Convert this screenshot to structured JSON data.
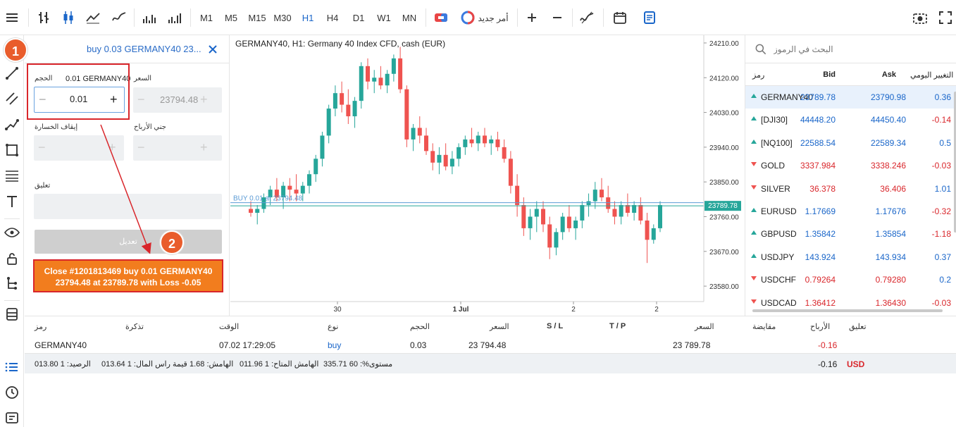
{
  "toolbar": {
    "timeframes": [
      "M1",
      "M5",
      "M15",
      "M30",
      "H1",
      "H4",
      "D1",
      "W1",
      "MN"
    ],
    "active_timeframe": "H1",
    "new_order_label": "أمر جديد"
  },
  "order": {
    "title": "buy 0.03 GERMANY40 23...",
    "volume_label": "الحجم",
    "volume_hint": "0.01 GERMANY40",
    "volume_value": "0.01",
    "price_label": "السعر",
    "price_value": "23794.48",
    "stop_loss_label": "إيقاف الخسارة",
    "take_profit_label": "جني الأرباح",
    "comment_label": "تعليق",
    "modify_label": "تعديل",
    "close_line1": "Close #1201813469 buy 0.01 GERMANY40",
    "close_line2": "23794.48 at 23789.78 with Loss -0.05",
    "badge1": "1",
    "badge2": "2"
  },
  "chart": {
    "title": "GERMANY40, H1: Germany 40 Index CFD, cash (EUR)",
    "buy_line_label": "BUY 0.01 at 23794.48",
    "current_price_label": "23789.78",
    "price_ticks": [
      "24210.00",
      "24120.00",
      "24030.00",
      "23940.00",
      "23850.00",
      "23760.00",
      "23670.00",
      "23580.00"
    ],
    "time_ticks": [
      "30",
      "1 Jul",
      "2",
      "2"
    ],
    "colors": {
      "up": "#26a69a",
      "down": "#ef5350",
      "buy_line": "#5b9bd5",
      "current_line": "#26a69a"
    }
  },
  "chart_data": {
    "type": "candlestick",
    "title": "GERMANY40, H1: Germany 40 Index CFD, cash (EUR)",
    "ylim": [
      23540,
      24230
    ],
    "x_tick_labels": [
      "30",
      "1 Jul",
      "2",
      "2"
    ],
    "reference_lines": [
      {
        "label": "BUY 0.01 at 23794.48",
        "value": 23794.48
      },
      {
        "label": "23789.78",
        "value": 23789.78
      }
    ],
    "ohlc": [
      [
        23780,
        23800,
        23760,
        23770
      ],
      [
        23770,
        23790,
        23740,
        23780
      ],
      [
        23780,
        23820,
        23770,
        23810
      ],
      [
        23810,
        23840,
        23790,
        23830
      ],
      [
        23830,
        23860,
        23800,
        23810
      ],
      [
        23810,
        23850,
        23780,
        23840
      ],
      [
        23840,
        23860,
        23800,
        23830
      ],
      [
        23830,
        23870,
        23800,
        23820
      ],
      [
        23820,
        23850,
        23800,
        23840
      ],
      [
        23840,
        23880,
        23820,
        23870
      ],
      [
        23870,
        23920,
        23850,
        23910
      ],
      [
        23910,
        23980,
        23890,
        23970
      ],
      [
        23970,
        24050,
        23950,
        24040
      ],
      [
        24040,
        24100,
        24020,
        24080
      ],
      [
        24080,
        24110,
        24030,
        24050
      ],
      [
        24050,
        24090,
        24000,
        24020
      ],
      [
        24020,
        24070,
        23990,
        24060
      ],
      [
        24060,
        24160,
        24040,
        24150
      ],
      [
        24150,
        24170,
        24090,
        24110
      ],
      [
        24110,
        24140,
        24080,
        24120
      ],
      [
        24120,
        24150,
        24090,
        24100
      ],
      [
        24100,
        24140,
        24080,
        24130
      ],
      [
        24130,
        24180,
        24110,
        24170
      ],
      [
        24170,
        24200,
        24080,
        24090
      ],
      [
        24090,
        24100,
        23940,
        23960
      ],
      [
        23960,
        24000,
        23930,
        23990
      ],
      [
        23990,
        24020,
        23950,
        23970
      ],
      [
        23970,
        23990,
        23920,
        23930
      ],
      [
        23930,
        23950,
        23880,
        23900
      ],
      [
        23900,
        23940,
        23870,
        23920
      ],
      [
        23920,
        23950,
        23880,
        23890
      ],
      [
        23890,
        23930,
        23870,
        23910
      ],
      [
        23910,
        23950,
        23890,
        23940
      ],
      [
        23940,
        23970,
        23920,
        23960
      ],
      [
        23960,
        23990,
        23940,
        23950
      ],
      [
        23950,
        23980,
        23930,
        23970
      ],
      [
        23970,
        23990,
        23940,
        23950
      ],
      [
        23950,
        23970,
        23920,
        23960
      ],
      [
        23960,
        23980,
        23930,
        23940
      ],
      [
        23940,
        23960,
        23900,
        23910
      ],
      [
        23910,
        23930,
        23820,
        23840
      ],
      [
        23840,
        23870,
        23760,
        23790
      ],
      [
        23790,
        23810,
        23710,
        23730
      ],
      [
        23730,
        23780,
        23700,
        23760
      ],
      [
        23760,
        23800,
        23720,
        23780
      ],
      [
        23780,
        23800,
        23720,
        23740
      ],
      [
        23740,
        23760,
        23650,
        23680
      ],
      [
        23680,
        23730,
        23660,
        23720
      ],
      [
        23720,
        23770,
        23700,
        23760
      ],
      [
        23760,
        23790,
        23720,
        23730
      ],
      [
        23730,
        23760,
        23700,
        23750
      ],
      [
        23750,
        23800,
        23730,
        23790
      ],
      [
        23790,
        23820,
        23760,
        23800
      ],
      [
        23800,
        23850,
        23780,
        23830
      ],
      [
        23830,
        23860,
        23800,
        23810
      ],
      [
        23810,
        23840,
        23770,
        23780
      ],
      [
        23780,
        23800,
        23740,
        23760
      ],
      [
        23760,
        23800,
        23740,
        23790
      ],
      [
        23790,
        23820,
        23760,
        23770
      ],
      [
        23770,
        23800,
        23750,
        23790
      ],
      [
        23790,
        23810,
        23740,
        23750
      ],
      [
        23750,
        23770,
        23640,
        23700
      ],
      [
        23700,
        23740,
        23690,
        23730
      ],
      [
        23730,
        23800,
        23720,
        23790
      ]
    ]
  },
  "watchlist": {
    "search_placeholder": "البحث في الرموز",
    "headers": {
      "symbol": "رمز",
      "bid": "Bid",
      "ask": "Ask",
      "change": "التغيير اليومي"
    },
    "rows": [
      {
        "symbol": "GERMANY40",
        "dir": "up",
        "bid": "23789.78",
        "ask": "23790.98",
        "change": "0.36"
      },
      {
        "symbol": "[DJI30]",
        "dir": "up",
        "bid": "44448.20",
        "ask": "44450.40",
        "change": "-0.14"
      },
      {
        "symbol": "[NQ100]",
        "dir": "up",
        "bid": "22588.54",
        "ask": "22589.34",
        "change": "0.5"
      },
      {
        "symbol": "GOLD",
        "dir": "down",
        "bid": "3337.984",
        "ask": "3338.246",
        "change": "-0.03"
      },
      {
        "symbol": "SILVER",
        "dir": "down",
        "bid": "36.378",
        "ask": "36.406",
        "change": "1.01"
      },
      {
        "symbol": "EURUSD",
        "dir": "up",
        "bid": "1.17669",
        "ask": "1.17676",
        "change": "-0.32"
      },
      {
        "symbol": "GBPUSD",
        "dir": "up",
        "bid": "1.35842",
        "ask": "1.35854",
        "change": "-1.18"
      },
      {
        "symbol": "USDJPY",
        "dir": "up",
        "bid": "143.924",
        "ask": "143.934",
        "change": "0.37"
      },
      {
        "symbol": "USDCHF",
        "dir": "down",
        "bid": "0.79264",
        "ask": "0.79280",
        "change": "0.2"
      },
      {
        "symbol": "USDCAD",
        "dir": "down",
        "bid": "1.36412",
        "ask": "1.36430",
        "change": "-0.03"
      }
    ]
  },
  "positions": {
    "headers": {
      "symbol": "رمز",
      "ticket": "تذكرة",
      "time": "الوقت",
      "type": "نوع",
      "volume": "الحجم",
      "price": "السعر",
      "sl": "S / L",
      "tp": "T / P",
      "current": "السعر",
      "swap": "مقايضة",
      "profit": "الأرباح",
      "comment": "تعليق"
    },
    "row": {
      "symbol": "GERMANY40",
      "time": "07.02 17:29:05",
      "type": "buy",
      "volume": "0.03",
      "price": "23 794.48",
      "current": "23 789.78",
      "profit": "-0.16"
    },
    "summary": {
      "balance": "الرصيد: 1 013.80",
      "equity": "قيمة راس المال: 1 013.64",
      "margin": "الهامش: 1.68",
      "free_margin": "الهامش المتاح: 1 011.96",
      "level": "مستوى%: 60 335.71",
      "total_profit": "-0.16",
      "currency": "USD"
    }
  }
}
